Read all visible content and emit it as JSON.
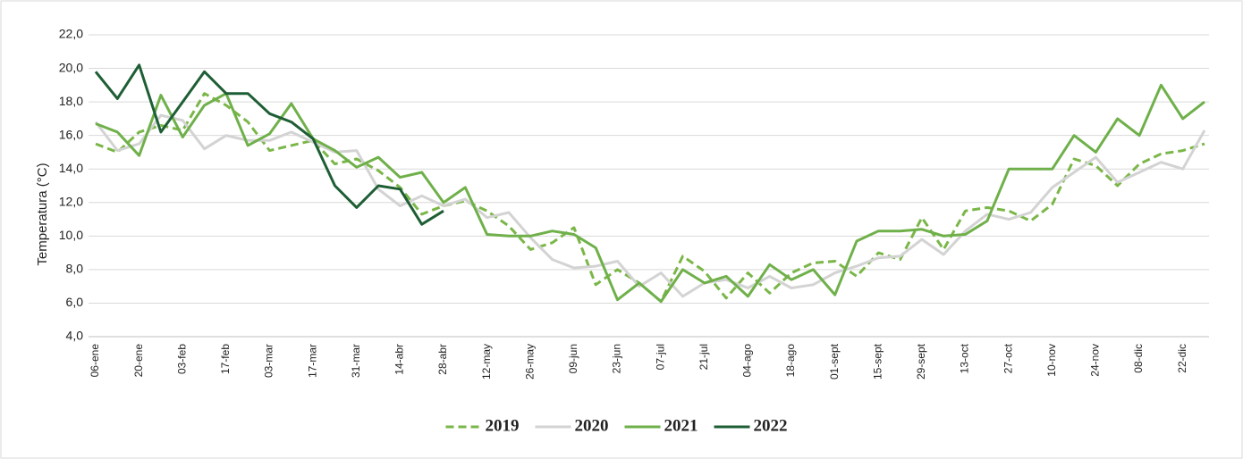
{
  "chart_data": {
    "type": "line",
    "y_label": "Temperatura (°C)",
    "categories": [
      "06-ene",
      null,
      "20-ene",
      null,
      "03-feb",
      null,
      "17-feb",
      null,
      "03-mar",
      null,
      "17-mar",
      null,
      "31-mar",
      null,
      "14-abr",
      null,
      "28-abr",
      null,
      "12-may",
      null,
      "26-may",
      null,
      "09-jun",
      null,
      "23-jun",
      null,
      "07-jul",
      null,
      "21-jul",
      null,
      "04-ago",
      null,
      "18-ago",
      null,
      "01-sept",
      null,
      "15-sept",
      null,
      "29-sept",
      null,
      "13-oct",
      null,
      "27-oct",
      null,
      "10-nov",
      null,
      "24-nov",
      null,
      "08-dic",
      null,
      "22-dic",
      null
    ],
    "series": [
      {
        "name": "2019",
        "color": "#7ab648",
        "dashed": true,
        "values": [
          15.5,
          15.0,
          16.2,
          16.6,
          16.3,
          18.5,
          17.8,
          16.8,
          15.1,
          15.4,
          15.7,
          14.3,
          14.6,
          13.9,
          12.9,
          11.3,
          11.8,
          12.1,
          11.5,
          10.6,
          9.2,
          9.6,
          10.5,
          7.1,
          8.0,
          7.2,
          6.1,
          8.8,
          7.9,
          6.3,
          7.8,
          6.6,
          7.8,
          8.4,
          8.5,
          7.6,
          9.0,
          8.6,
          11.1,
          9.2,
          11.5,
          11.7,
          11.5,
          10.9,
          11.9,
          14.6,
          14.2,
          13.0,
          14.3,
          14.9,
          15.1,
          15.5
        ]
      },
      {
        "name": "2020",
        "color": "#d3d3d3",
        "values": [
          16.8,
          15.1,
          15.5,
          17.2,
          16.9,
          15.2,
          16.0,
          15.7,
          15.7,
          16.2,
          15.6,
          15.0,
          15.1,
          12.8,
          11.8,
          12.4,
          11.8,
          12.2,
          11.1,
          11.4,
          9.9,
          8.6,
          8.1,
          8.2,
          8.5,
          7.0,
          7.8,
          6.4,
          7.2,
          7.4,
          6.9,
          7.6,
          6.9,
          7.1,
          7.8,
          8.2,
          8.7,
          8.8,
          9.8,
          8.9,
          10.3,
          11.3,
          11.0,
          11.4,
          12.9,
          13.8,
          14.7,
          13.2,
          13.8,
          14.4,
          14.0,
          16.3
        ]
      },
      {
        "name": "2021",
        "color": "#6fb04a",
        "values": [
          16.7,
          16.2,
          14.8,
          18.4,
          15.9,
          17.8,
          18.5,
          15.4,
          16.1,
          17.9,
          15.8,
          15.1,
          14.1,
          14.7,
          13.5,
          13.8,
          12.0,
          12.9,
          10.1,
          10.0,
          10.0,
          10.3,
          10.1,
          9.3,
          6.2,
          7.2,
          6.1,
          8.0,
          7.2,
          7.6,
          6.4,
          8.3,
          7.4,
          8.0,
          6.5,
          9.7,
          10.3,
          10.3,
          10.4,
          10.0,
          10.1,
          10.9,
          14.0,
          14.0,
          14.0,
          16.0,
          15.0,
          17.0,
          16.0,
          19.0,
          17.0,
          18.0
        ]
      },
      {
        "name": "2022",
        "color": "#1e5e35",
        "values": [
          19.8,
          18.2,
          20.2,
          16.2,
          18.0,
          19.8,
          18.5,
          18.5,
          17.3,
          16.8,
          15.8,
          13.0,
          11.7,
          13.0,
          12.8,
          10.7,
          11.5,
          null,
          null,
          null,
          null,
          null,
          null,
          null,
          null,
          null,
          null,
          null,
          null,
          null,
          null,
          null,
          null,
          null,
          null,
          null,
          null,
          null,
          null,
          null,
          null,
          null,
          null,
          null,
          null,
          null,
          null,
          null,
          null,
          null,
          null,
          null
        ]
      }
    ],
    "ylim": [
      4,
      22
    ],
    "yticks": [
      {
        "value": 4,
        "label": "4,0"
      },
      {
        "value": 6,
        "label": "6,0"
      },
      {
        "value": 8,
        "label": "8,0"
      },
      {
        "value": 10,
        "label": "10,0"
      },
      {
        "value": 12,
        "label": "12,0"
      },
      {
        "value": 14,
        "label": "14,0"
      },
      {
        "value": 16,
        "label": "16,0"
      },
      {
        "value": 18,
        "label": "18,0"
      },
      {
        "value": 20,
        "label": "20,0"
      },
      {
        "value": 22,
        "label": "22,0"
      }
    ],
    "grid": true,
    "legend": "bottom"
  }
}
